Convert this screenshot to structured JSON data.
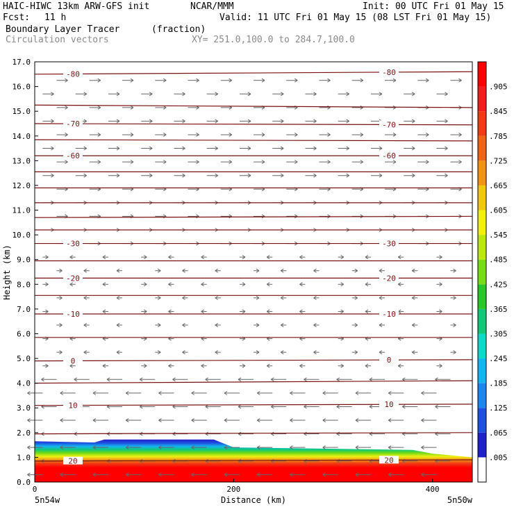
{
  "header": {
    "model": "HAIC-HIWC 13km ARW-GFS init",
    "org": "NCAR/MMM",
    "init": "Init: 00 UTC Fri 01 May 15",
    "fcst_label": "Fcst:",
    "fcst_value": "11 h",
    "valid": "Valid: 11 UTC Fri 01 May 15 (08 LST Fri 01 May 15)",
    "field": "Boundary Layer Tracer",
    "units": "(fraction)",
    "overlay": "Circulation vectors",
    "xy": "XY= 251.0,100.0 to 284.7,100.0"
  },
  "chart_data": {
    "type": "heatmap",
    "xlabel": "Distance (km)",
    "ylabel": "Height (km)",
    "xlim": [
      0,
      440
    ],
    "ylim": [
      0,
      17
    ],
    "x_ticks": [
      0,
      200,
      400
    ],
    "y_ticks": [
      "0.0",
      "1.0",
      "2.0",
      "3.0",
      "4.0",
      "5.0",
      "6.0",
      "7.0",
      "8.0",
      "9.0",
      "10.0",
      "11.0",
      "12.0",
      "13.0",
      "14.0",
      "15.0",
      "16.0",
      "17.0"
    ],
    "x_end_labels": {
      "left": "5n54w",
      "right": "5n50w"
    },
    "colorbar": {
      "labels": [
        ".005",
        ".065",
        ".125",
        ".185",
        ".245",
        ".305",
        ".365",
        ".425",
        ".485",
        ".545",
        ".605",
        ".665",
        ".725",
        ".785",
        ".845",
        ".905"
      ],
      "colors": [
        "#ffffff",
        "#2020c8",
        "#1e4fe0",
        "#1a86f0",
        "#14b4f0",
        "#10d8c8",
        "#10c878",
        "#28c828",
        "#78dc14",
        "#bce614",
        "#f0f014",
        "#f0c814",
        "#f09614",
        "#f06414",
        "#f03c14",
        "#f01e1e",
        "#ff0000"
      ]
    },
    "tracer_top_km": [
      {
        "x": 0,
        "y": 1.65
      },
      {
        "x": 60,
        "y": 1.6
      },
      {
        "x": 70,
        "y": 1.72
      },
      {
        "x": 180,
        "y": 1.72
      },
      {
        "x": 200,
        "y": 1.4
      },
      {
        "x": 380,
        "y": 1.3
      },
      {
        "x": 400,
        "y": 1.15
      },
      {
        "x": 440,
        "y": 1.0
      }
    ],
    "temperature_contours": [
      {
        "label": "-80",
        "y_left": 16.5,
        "y_right": 16.6
      },
      {
        "label": "",
        "y_left": 15.25,
        "y_right": 15.15
      },
      {
        "label": "-70",
        "y_left": 14.5,
        "y_right": 14.45
      },
      {
        "label": "",
        "y_left": 13.85,
        "y_right": 13.8
      },
      {
        "label": "-60",
        "y_left": 13.2,
        "y_right": 13.2
      },
      {
        "label": "",
        "y_left": 12.55,
        "y_right": 12.55
      },
      {
        "label": "",
        "y_left": 11.9,
        "y_right": 11.9
      },
      {
        "label": "",
        "y_left": 11.3,
        "y_right": 11.3
      },
      {
        "label": "",
        "y_left": 10.7,
        "y_right": 10.75
      },
      {
        "label": "",
        "y_left": 10.2,
        "y_right": 10.2
      },
      {
        "label": "-30",
        "y_left": 9.65,
        "y_right": 9.65
      },
      {
        "label": "",
        "y_left": 8.95,
        "y_right": 8.95
      },
      {
        "label": "-20",
        "y_left": 8.25,
        "y_right": 8.25
      },
      {
        "label": "",
        "y_left": 7.55,
        "y_right": 7.55
      },
      {
        "label": "-10",
        "y_left": 6.8,
        "y_right": 6.8
      },
      {
        "label": "",
        "y_left": 5.85,
        "y_right": 5.85
      },
      {
        "label": "0",
        "y_left": 4.9,
        "y_right": 4.95
      },
      {
        "label": "",
        "y_left": 4.0,
        "y_right": 4.1
      },
      {
        "label": "10",
        "y_left": 3.1,
        "y_right": 3.15
      },
      {
        "label": "",
        "y_left": 1.95,
        "y_right": 2.0
      },
      {
        "label": "20",
        "y_left": 0.85,
        "y_right": 0.9
      }
    ],
    "grid": false,
    "legend": "right colorbar"
  }
}
